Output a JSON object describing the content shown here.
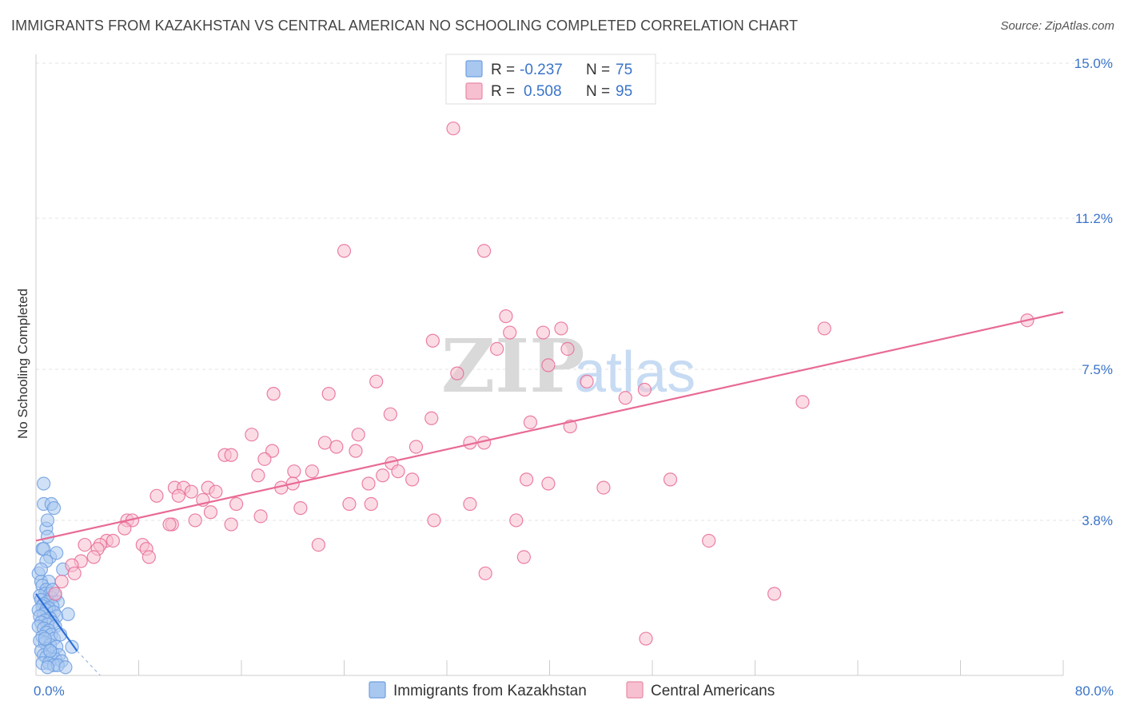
{
  "title": "IMMIGRANTS FROM KAZAKHSTAN VS CENTRAL AMERICAN NO SCHOOLING COMPLETED CORRELATION CHART",
  "source": "Source: ZipAtlas.com",
  "watermark": {
    "zip": "ZIP",
    "atlas": "atlas"
  },
  "legend": {
    "rows": [
      {
        "r_label": "R =",
        "r_value": "-0.237",
        "n_label": "N =",
        "n_value": "75",
        "color": "#a9c8f0",
        "border": "#6f9fe0"
      },
      {
        "r_label": "R =",
        "r_value": "0.508",
        "n_label": "N =",
        "n_value": "95",
        "color": "#f7c0d0",
        "border": "#e88aa8"
      }
    ]
  },
  "chart_data": {
    "type": "scatter",
    "xlabel": "",
    "ylabel": "No Schooling Completed",
    "xlim": [
      0,
      80
    ],
    "ylim": [
      0,
      15
    ],
    "x_tick_labels": {
      "min": "0.0%",
      "max": "80.0%"
    },
    "y_ticks": [
      {
        "value": 3.8,
        "label": "3.8%"
      },
      {
        "value": 7.5,
        "label": "7.5%"
      },
      {
        "value": 11.2,
        "label": "11.2%"
      },
      {
        "value": 15.0,
        "label": "15.0%"
      }
    ],
    "grid": true,
    "legend_position": "bottom-center",
    "series": [
      {
        "name": "Immigrants from Kazakhstan",
        "color": "#6f9fe0",
        "fill": "#a9c8f0",
        "trend": {
          "x": [
            0.0,
            3.2
          ],
          "y": [
            2.0,
            0.6
          ]
        },
        "trend_dashed_extension": {
          "x": [
            3.2,
            5.0
          ],
          "y": [
            0.6,
            -0.2
          ]
        },
        "points": [
          [
            0.6,
            4.7
          ],
          [
            0.6,
            4.2
          ],
          [
            1.2,
            4.2
          ],
          [
            1.4,
            4.1
          ],
          [
            0.8,
            3.6
          ],
          [
            0.9,
            3.4
          ],
          [
            0.5,
            3.1
          ],
          [
            0.6,
            3.1
          ],
          [
            1.1,
            2.9
          ],
          [
            0.8,
            2.8
          ],
          [
            2.1,
            2.6
          ],
          [
            0.2,
            2.5
          ],
          [
            0.4,
            2.3
          ],
          [
            1.0,
            2.3
          ],
          [
            0.5,
            2.2
          ],
          [
            0.8,
            2.1
          ],
          [
            0.7,
            2.0
          ],
          [
            1.1,
            2.0
          ],
          [
            0.3,
            1.95
          ],
          [
            1.5,
            1.95
          ],
          [
            1.2,
            1.9
          ],
          [
            0.4,
            1.85
          ],
          [
            1.7,
            1.8
          ],
          [
            0.9,
            1.8
          ],
          [
            0.6,
            1.75
          ],
          [
            1.3,
            1.7
          ],
          [
            0.5,
            1.7
          ],
          [
            1.0,
            1.65
          ],
          [
            0.2,
            1.6
          ],
          [
            0.8,
            1.6
          ],
          [
            1.4,
            1.55
          ],
          [
            0.6,
            1.5
          ],
          [
            1.6,
            1.45
          ],
          [
            0.3,
            1.45
          ],
          [
            1.1,
            1.4
          ],
          [
            0.7,
            1.35
          ],
          [
            1.3,
            1.3
          ],
          [
            0.4,
            1.3
          ],
          [
            0.9,
            1.25
          ],
          [
            0.2,
            1.2
          ],
          [
            1.5,
            1.2
          ],
          [
            0.6,
            1.15
          ],
          [
            1.0,
            1.1
          ],
          [
            0.8,
            1.05
          ],
          [
            1.2,
            1.0
          ],
          [
            0.5,
            0.95
          ],
          [
            1.4,
            0.9
          ],
          [
            0.3,
            0.85
          ],
          [
            0.7,
            0.8
          ],
          [
            1.1,
            0.75
          ],
          [
            1.6,
            0.7
          ],
          [
            0.9,
            0.65
          ],
          [
            0.4,
            0.6
          ],
          [
            1.3,
            0.55
          ],
          [
            0.6,
            0.5
          ],
          [
            1.8,
            0.5
          ],
          [
            0.8,
            0.45
          ],
          [
            1.2,
            0.4
          ],
          [
            1.5,
            0.4
          ],
          [
            2.0,
            0.35
          ],
          [
            0.5,
            0.3
          ],
          [
            1.0,
            0.3
          ],
          [
            1.4,
            0.25
          ],
          [
            1.7,
            0.25
          ],
          [
            2.3,
            0.2
          ],
          [
            0.9,
            0.2
          ],
          [
            1.1,
            0.6
          ],
          [
            0.7,
            0.9
          ],
          [
            1.9,
            1.0
          ],
          [
            2.5,
            1.5
          ],
          [
            1.3,
            2.1
          ],
          [
            0.4,
            2.6
          ],
          [
            1.6,
            3.0
          ],
          [
            0.9,
            3.8
          ],
          [
            2.8,
            0.7
          ]
        ]
      },
      {
        "name": "Central Americans",
        "color": "#e86a95",
        "fill": "#f7c0d0",
        "trend": {
          "x": [
            0,
            80
          ],
          "y": [
            3.3,
            8.9
          ]
        },
        "points": [
          [
            32.5,
            13.4
          ],
          [
            24.0,
            10.4
          ],
          [
            34.9,
            10.4
          ],
          [
            36.6,
            8.8
          ],
          [
            36.9,
            8.4
          ],
          [
            39.5,
            8.4
          ],
          [
            40.9,
            8.5
          ],
          [
            41.4,
            8.0
          ],
          [
            30.9,
            8.2
          ],
          [
            35.9,
            8.0
          ],
          [
            39.9,
            7.6
          ],
          [
            32.8,
            7.4
          ],
          [
            26.5,
            7.2
          ],
          [
            42.9,
            7.2
          ],
          [
            18.5,
            6.9
          ],
          [
            22.8,
            6.9
          ],
          [
            45.9,
            6.8
          ],
          [
            47.4,
            7.0
          ],
          [
            27.6,
            6.4
          ],
          [
            30.8,
            6.3
          ],
          [
            38.5,
            6.2
          ],
          [
            41.6,
            6.1
          ],
          [
            59.7,
            6.7
          ],
          [
            61.4,
            8.5
          ],
          [
            77.2,
            8.7
          ],
          [
            16.8,
            5.9
          ],
          [
            25.1,
            5.9
          ],
          [
            22.5,
            5.7
          ],
          [
            33.8,
            5.7
          ],
          [
            34.9,
            5.7
          ],
          [
            23.4,
            5.6
          ],
          [
            29.6,
            5.6
          ],
          [
            18.4,
            5.5
          ],
          [
            14.7,
            5.4
          ],
          [
            15.2,
            5.4
          ],
          [
            17.8,
            5.3
          ],
          [
            24.9,
            5.5
          ],
          [
            27.7,
            5.2
          ],
          [
            20.1,
            5.0
          ],
          [
            21.5,
            5.0
          ],
          [
            28.2,
            5.0
          ],
          [
            27.0,
            4.9
          ],
          [
            29.3,
            4.8
          ],
          [
            17.3,
            4.9
          ],
          [
            38.2,
            4.8
          ],
          [
            39.9,
            4.7
          ],
          [
            49.4,
            4.8
          ],
          [
            13.4,
            4.6
          ],
          [
            10.8,
            4.6
          ],
          [
            11.5,
            4.6
          ],
          [
            12.1,
            4.5
          ],
          [
            14.0,
            4.5
          ],
          [
            11.1,
            4.4
          ],
          [
            9.4,
            4.4
          ],
          [
            19.1,
            4.6
          ],
          [
            20.0,
            4.7
          ],
          [
            25.9,
            4.7
          ],
          [
            44.2,
            4.6
          ],
          [
            13.0,
            4.3
          ],
          [
            15.6,
            4.2
          ],
          [
            20.6,
            4.1
          ],
          [
            24.4,
            4.2
          ],
          [
            26.1,
            4.2
          ],
          [
            33.8,
            4.2
          ],
          [
            13.6,
            4.0
          ],
          [
            7.1,
            3.8
          ],
          [
            7.5,
            3.8
          ],
          [
            12.4,
            3.8
          ],
          [
            15.2,
            3.7
          ],
          [
            10.6,
            3.7
          ],
          [
            6.9,
            3.6
          ],
          [
            31.0,
            3.8
          ],
          [
            37.4,
            3.8
          ],
          [
            10.4,
            3.7
          ],
          [
            17.5,
            3.9
          ],
          [
            22.0,
            3.2
          ],
          [
            52.4,
            3.3
          ],
          [
            5.5,
            3.3
          ],
          [
            5.0,
            3.2
          ],
          [
            3.8,
            3.2
          ],
          [
            4.8,
            3.1
          ],
          [
            8.3,
            3.2
          ],
          [
            8.6,
            3.1
          ],
          [
            8.8,
            2.9
          ],
          [
            4.5,
            2.9
          ],
          [
            6.0,
            3.3
          ],
          [
            3.5,
            2.8
          ],
          [
            2.8,
            2.7
          ],
          [
            3.0,
            2.5
          ],
          [
            2.0,
            2.3
          ],
          [
            1.5,
            2.0
          ],
          [
            38.0,
            2.9
          ],
          [
            35.0,
            2.5
          ],
          [
            57.5,
            2.0
          ],
          [
            47.5,
            0.9
          ]
        ]
      }
    ]
  }
}
